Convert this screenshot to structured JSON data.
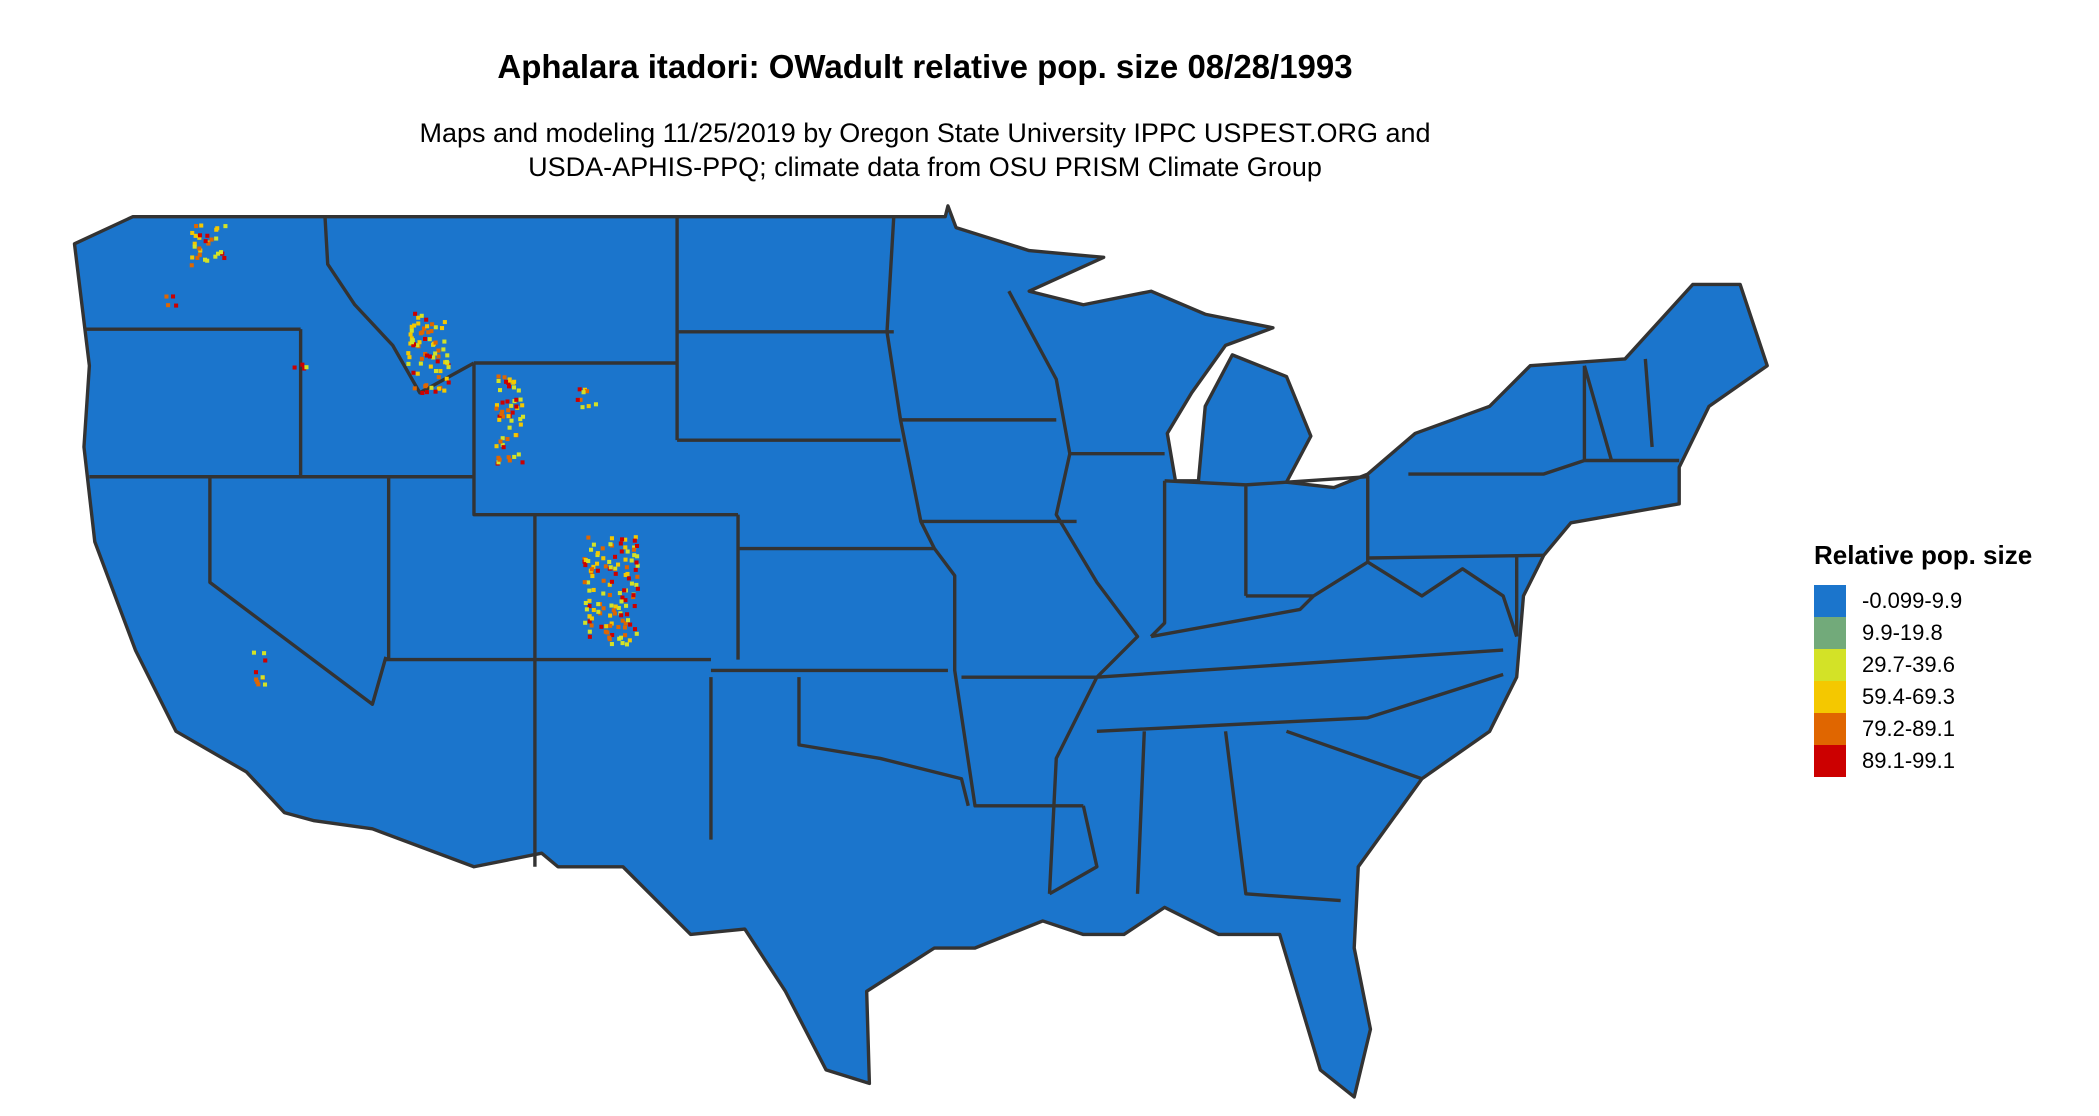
{
  "title": "Aphalara itadori: OWadult relative pop. size 08/28/1993",
  "subtitle_line1": "Maps and modeling 11/25/2019 by Oregon State University IPPC USPEST.ORG and",
  "subtitle_line2": "USDA-APHIS-PPQ; climate data from OSU PRISM Climate Group",
  "chart_data": {
    "type": "heatmap",
    "region": "Contiguous United States",
    "legend_title": "Relative pop. size",
    "legend_position": "right",
    "state_border_color": "#333333",
    "legend": [
      {
        "label": "-0.099-9.9",
        "color": "#1B75CC"
      },
      {
        "label": "9.9-19.8",
        "color": "#72AA7A"
      },
      {
        "label": "29.7-39.6",
        "color": "#D3E227"
      },
      {
        "label": "59.4-69.3",
        "color": "#F4C800"
      },
      {
        "label": "79.2-89.1",
        "color": "#E06600"
      },
      {
        "label": "89.1-99.1",
        "color": "#CC0000"
      }
    ]
  }
}
